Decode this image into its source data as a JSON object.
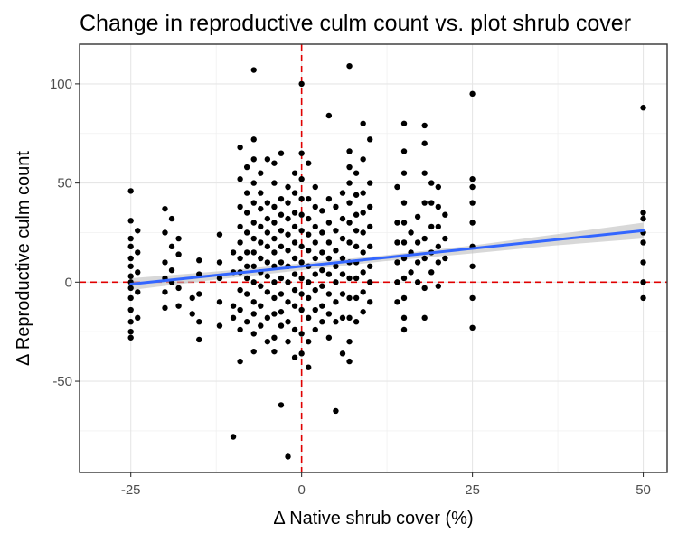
{
  "chart_data": {
    "type": "scatter",
    "title": "Change in reproductive culm count vs. plot shrub cover",
    "xlabel": "Δ Native shrub cover (%)",
    "ylabel": "Δ Reproductive culm count",
    "xlim": [
      -32.5,
      53.5
    ],
    "ylim": [
      -96,
      120
    ],
    "x_ticks": [
      -25,
      0,
      25,
      50
    ],
    "y_ticks": [
      -50,
      0,
      50,
      100
    ],
    "x_tick_labels": [
      "-25",
      "0",
      "25",
      "50"
    ],
    "y_tick_labels": [
      "-50",
      "0",
      "50",
      "100"
    ],
    "grid": true,
    "reference_lines": [
      {
        "orientation": "vertical",
        "value": 0,
        "style": "dashed",
        "color": "#e00000"
      },
      {
        "orientation": "horizontal",
        "value": 0,
        "style": "dashed",
        "color": "#e00000"
      }
    ],
    "trend_line": {
      "method": "linear",
      "x": [
        -25,
        50
      ],
      "y": [
        -1,
        26
      ],
      "color": "#3366ff",
      "confidence_band": {
        "x": [
          -25,
          -12,
          0,
          12,
          25,
          37,
          50
        ],
        "lower": [
          -4,
          1.5,
          6,
          10.5,
          14.5,
          18.5,
          22
        ],
        "upper": [
          2,
          5.5,
          9.5,
          13.5,
          18.5,
          24,
          30
        ],
        "color": "#bebebe"
      }
    },
    "point_color": "#000000",
    "points": [
      [
        -25,
        46
      ],
      [
        -25,
        31
      ],
      [
        -25,
        22
      ],
      [
        -25,
        18
      ],
      [
        -25,
        12
      ],
      [
        -25,
        8
      ],
      [
        -25,
        3
      ],
      [
        -25,
        0
      ],
      [
        -25,
        -3
      ],
      [
        -25,
        -8
      ],
      [
        -25,
        -14
      ],
      [
        -25,
        -20
      ],
      [
        -25,
        -25
      ],
      [
        -25,
        -28
      ],
      [
        -24,
        26
      ],
      [
        -24,
        15
      ],
      [
        -24,
        5
      ],
      [
        -24,
        -5
      ],
      [
        -24,
        -18
      ],
      [
        -20,
        37
      ],
      [
        -20,
        25
      ],
      [
        -20,
        10
      ],
      [
        -20,
        2
      ],
      [
        -20,
        -5
      ],
      [
        -20,
        -13
      ],
      [
        -19,
        32
      ],
      [
        -19,
        18
      ],
      [
        -19,
        6
      ],
      [
        -19,
        0
      ],
      [
        -18,
        22
      ],
      [
        -18,
        14
      ],
      [
        -18,
        -3
      ],
      [
        -18,
        -12
      ],
      [
        -16,
        -16
      ],
      [
        -16,
        -8
      ],
      [
        -15,
        11
      ],
      [
        -15,
        4
      ],
      [
        -15,
        -6
      ],
      [
        -15,
        -20
      ],
      [
        -15,
        -29
      ],
      [
        -12,
        24
      ],
      [
        -12,
        10
      ],
      [
        -12,
        2
      ],
      [
        -12,
        -10
      ],
      [
        -12,
        -22
      ],
      [
        -10,
        -78
      ],
      [
        -10,
        15
      ],
      [
        -10,
        5
      ],
      [
        -10,
        -18
      ],
      [
        -10,
        -12
      ],
      [
        -9,
        68
      ],
      [
        -9,
        52
      ],
      [
        -9,
        38
      ],
      [
        -9,
        28
      ],
      [
        -9,
        20
      ],
      [
        -9,
        12
      ],
      [
        -9,
        5
      ],
      [
        -9,
        -4
      ],
      [
        -9,
        -14
      ],
      [
        -9,
        -24
      ],
      [
        -9,
        -40
      ],
      [
        -8,
        58
      ],
      [
        -8,
        45
      ],
      [
        -8,
        35
      ],
      [
        -8,
        25
      ],
      [
        -8,
        15
      ],
      [
        -8,
        8
      ],
      [
        -8,
        2
      ],
      [
        -8,
        -6
      ],
      [
        -8,
        -20
      ],
      [
        -7,
        107
      ],
      [
        -7,
        72
      ],
      [
        -7,
        62
      ],
      [
        -7,
        50
      ],
      [
        -7,
        40
      ],
      [
        -7,
        30
      ],
      [
        -7,
        22
      ],
      [
        -7,
        15
      ],
      [
        -7,
        8
      ],
      [
        -7,
        0
      ],
      [
        -7,
        -10
      ],
      [
        -7,
        -16
      ],
      [
        -7,
        -26
      ],
      [
        -7,
        -35
      ],
      [
        -6,
        55
      ],
      [
        -6,
        45
      ],
      [
        -6,
        37
      ],
      [
        -6,
        28
      ],
      [
        -6,
        20
      ],
      [
        -6,
        12
      ],
      [
        -6,
        5
      ],
      [
        -6,
        -2
      ],
      [
        -6,
        -12
      ],
      [
        -6,
        -22
      ],
      [
        -5,
        62
      ],
      [
        -5,
        40
      ],
      [
        -5,
        32
      ],
      [
        -5,
        25
      ],
      [
        -5,
        18
      ],
      [
        -5,
        10
      ],
      [
        -5,
        3
      ],
      [
        -5,
        -5
      ],
      [
        -5,
        -18
      ],
      [
        -5,
        -30
      ],
      [
        -4,
        60
      ],
      [
        -4,
        50
      ],
      [
        -4,
        38
      ],
      [
        -4,
        30
      ],
      [
        -4,
        22
      ],
      [
        -4,
        15
      ],
      [
        -4,
        8
      ],
      [
        -4,
        0
      ],
      [
        -4,
        -8
      ],
      [
        -4,
        -16
      ],
      [
        -4,
        -28
      ],
      [
        -4,
        -35
      ],
      [
        -3,
        65
      ],
      [
        -3,
        42
      ],
      [
        -3,
        34
      ],
      [
        -3,
        26
      ],
      [
        -3,
        18
      ],
      [
        -3,
        10
      ],
      [
        -3,
        2
      ],
      [
        -3,
        -6
      ],
      [
        -3,
        -15
      ],
      [
        -3,
        -22
      ],
      [
        -3,
        -62
      ],
      [
        -2,
        48
      ],
      [
        -2,
        40
      ],
      [
        -2,
        32
      ],
      [
        -2,
        24
      ],
      [
        -2,
        16
      ],
      [
        -2,
        8
      ],
      [
        -2,
        0
      ],
      [
        -2,
        -10
      ],
      [
        -2,
        -20
      ],
      [
        -2,
        -30
      ],
      [
        -2,
        -88
      ],
      [
        -1,
        55
      ],
      [
        -1,
        45
      ],
      [
        -1,
        35
      ],
      [
        -1,
        28
      ],
      [
        -1,
        20
      ],
      [
        -1,
        12
      ],
      [
        -1,
        4
      ],
      [
        -1,
        -4
      ],
      [
        -1,
        -12
      ],
      [
        -1,
        -24
      ],
      [
        -1,
        -38
      ],
      [
        0,
        100
      ],
      [
        0,
        65
      ],
      [
        0,
        52
      ],
      [
        0,
        42
      ],
      [
        0,
        34
      ],
      [
        0,
        26
      ],
      [
        0,
        18
      ],
      [
        0,
        10
      ],
      [
        0,
        2
      ],
      [
        0,
        -6
      ],
      [
        0,
        -14
      ],
      [
        0,
        -26
      ],
      [
        0,
        -36
      ],
      [
        1,
        60
      ],
      [
        1,
        42
      ],
      [
        1,
        32
      ],
      [
        1,
        24
      ],
      [
        1,
        16
      ],
      [
        1,
        8
      ],
      [
        1,
        0
      ],
      [
        1,
        -8
      ],
      [
        1,
        -18
      ],
      [
        1,
        -30
      ],
      [
        1,
        -43
      ],
      [
        2,
        48
      ],
      [
        2,
        38
      ],
      [
        2,
        28
      ],
      [
        2,
        20
      ],
      [
        2,
        12
      ],
      [
        2,
        4
      ],
      [
        2,
        -4
      ],
      [
        2,
        -14
      ],
      [
        2,
        -24
      ],
      [
        3,
        36
      ],
      [
        3,
        25
      ],
      [
        3,
        15
      ],
      [
        3,
        6
      ],
      [
        3,
        -2
      ],
      [
        3,
        -12
      ],
      [
        3,
        -20
      ],
      [
        4,
        84
      ],
      [
        4,
        42
      ],
      [
        4,
        30
      ],
      [
        4,
        20
      ],
      [
        4,
        12
      ],
      [
        4,
        4
      ],
      [
        4,
        -6
      ],
      [
        4,
        -16
      ],
      [
        4,
        -28
      ],
      [
        5,
        38
      ],
      [
        5,
        26
      ],
      [
        5,
        16
      ],
      [
        5,
        8
      ],
      [
        5,
        0
      ],
      [
        5,
        -10
      ],
      [
        5,
        -20
      ],
      [
        5,
        -65
      ],
      [
        6,
        45
      ],
      [
        6,
        32
      ],
      [
        6,
        22
      ],
      [
        6,
        12
      ],
      [
        6,
        4
      ],
      [
        6,
        -6
      ],
      [
        6,
        -18
      ],
      [
        6,
        -36
      ],
      [
        7,
        109
      ],
      [
        7,
        66
      ],
      [
        7,
        58
      ],
      [
        7,
        50
      ],
      [
        7,
        40
      ],
      [
        7,
        30
      ],
      [
        7,
        20
      ],
      [
        7,
        10
      ],
      [
        7,
        2
      ],
      [
        7,
        -8
      ],
      [
        7,
        -18
      ],
      [
        7,
        -30
      ],
      [
        7,
        -40
      ],
      [
        8,
        55
      ],
      [
        8,
        44
      ],
      [
        8,
        34
      ],
      [
        8,
        26
      ],
      [
        8,
        18
      ],
      [
        8,
        10
      ],
      [
        8,
        2
      ],
      [
        8,
        -8
      ],
      [
        8,
        -20
      ],
      [
        9,
        80
      ],
      [
        9,
        62
      ],
      [
        9,
        45
      ],
      [
        9,
        35
      ],
      [
        9,
        25
      ],
      [
        9,
        15
      ],
      [
        9,
        5
      ],
      [
        9,
        -5
      ],
      [
        9,
        -15
      ],
      [
        10,
        72
      ],
      [
        10,
        50
      ],
      [
        10,
        38
      ],
      [
        10,
        28
      ],
      [
        10,
        18
      ],
      [
        10,
        8
      ],
      [
        10,
        0
      ],
      [
        10,
        -10
      ],
      [
        14,
        48
      ],
      [
        14,
        30
      ],
      [
        14,
        20
      ],
      [
        14,
        10
      ],
      [
        14,
        0
      ],
      [
        14,
        -10
      ],
      [
        15,
        80
      ],
      [
        15,
        66
      ],
      [
        15,
        55
      ],
      [
        15,
        40
      ],
      [
        15,
        30
      ],
      [
        15,
        20
      ],
      [
        15,
        12
      ],
      [
        15,
        2
      ],
      [
        15,
        -8
      ],
      [
        15,
        -18
      ],
      [
        15,
        -24
      ],
      [
        16,
        25
      ],
      [
        16,
        15
      ],
      [
        16,
        5
      ],
      [
        17,
        33
      ],
      [
        17,
        20
      ],
      [
        17,
        10
      ],
      [
        17,
        0
      ],
      [
        18,
        79
      ],
      [
        18,
        70
      ],
      [
        18,
        55
      ],
      [
        18,
        40
      ],
      [
        18,
        22
      ],
      [
        18,
        12
      ],
      [
        18,
        -3
      ],
      [
        18,
        -18
      ],
      [
        19,
        50
      ],
      [
        19,
        40
      ],
      [
        19,
        28
      ],
      [
        19,
        15
      ],
      [
        19,
        5
      ],
      [
        20,
        48
      ],
      [
        20,
        38
      ],
      [
        20,
        28
      ],
      [
        20,
        18
      ],
      [
        20,
        10
      ],
      [
        20,
        -2
      ],
      [
        21,
        34
      ],
      [
        21,
        22
      ],
      [
        21,
        12
      ],
      [
        25,
        95
      ],
      [
        25,
        52
      ],
      [
        25,
        48
      ],
      [
        25,
        40
      ],
      [
        25,
        30
      ],
      [
        25,
        18
      ],
      [
        25,
        8
      ],
      [
        25,
        -8
      ],
      [
        25,
        -23
      ],
      [
        50,
        88
      ],
      [
        50,
        35
      ],
      [
        50,
        32
      ],
      [
        50,
        25
      ],
      [
        50,
        20
      ],
      [
        50,
        10
      ],
      [
        50,
        0
      ],
      [
        50,
        -8
      ]
    ]
  }
}
